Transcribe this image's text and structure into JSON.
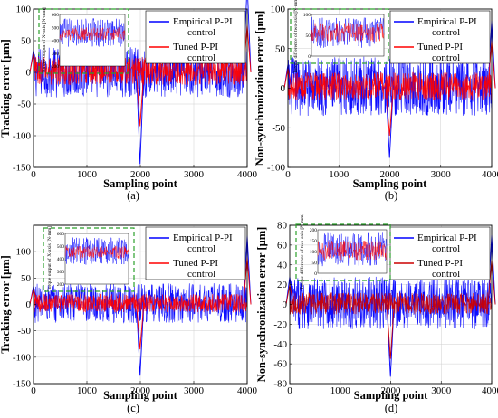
{
  "chart_data": [
    {
      "type": "line",
      "caption": "(a)",
      "xlabel": "Sampling point",
      "ylabel": "Tracking error [μm]",
      "xlim": [
        0,
        4000
      ],
      "ylim": [
        -150,
        100
      ],
      "xticks": [
        0,
        1000,
        2000,
        3000,
        4000
      ],
      "yticks": [
        -150,
        -100,
        -50,
        0,
        50,
        100
      ],
      "legend": {
        "placement": "top-right",
        "entries": [
          "Empirical P-PI control",
          "Tuned P-PI control"
        ]
      },
      "series": [
        {
          "name": "Empirical P-PI control",
          "color": "#0000ff",
          "band": [
            -40,
            40
          ],
          "spikes": [
            [
              0,
              35
            ],
            [
              1995,
              -145
            ],
            [
              4000,
              140
            ]
          ]
        },
        {
          "name": "Tuned P-PI control",
          "color": "#ff0000",
          "band": [
            -20,
            25
          ],
          "spikes": [
            [
              0,
              30
            ],
            [
              1995,
              -85
            ],
            [
              4000,
              75
            ]
          ]
        }
      ],
      "inset": {
        "ylabel": "Torque output of X-axis [N·mm]",
        "ylim": [
          200,
          600
        ],
        "yticks": [
          200,
          300,
          400,
          500,
          600
        ],
        "blue_band": [
          350,
          570
        ],
        "red_band": [
          400,
          500
        ]
      }
    },
    {
      "type": "line",
      "caption": "(b)",
      "xlabel": "Sampling point",
      "ylabel": "Non-synchronization error [μm]",
      "xlim": [
        0,
        4000
      ],
      "ylim": [
        -100,
        100
      ],
      "xticks": [
        0,
        1000,
        2000,
        3000,
        4000
      ],
      "yticks": [
        -100,
        -50,
        0,
        50,
        100
      ],
      "legend": {
        "placement": "top-right",
        "entries": [
          "Empirical P-PI control",
          "Tuned P-PI control"
        ]
      },
      "series": [
        {
          "name": "Empirical P-PI control",
          "color": "#0000ff",
          "band": [
            -35,
            40
          ],
          "spikes": [
            [
              0,
              30
            ],
            [
              1995,
              -88
            ],
            [
              4000,
              85
            ]
          ]
        },
        {
          "name": "Tuned P-PI control",
          "color": "#ff0000",
          "band": [
            -15,
            20
          ],
          "spikes": [
            [
              0,
              25
            ],
            [
              1995,
              -60
            ],
            [
              4000,
              60
            ]
          ]
        }
      ],
      "inset": {
        "ylabel": "Torque difference of two-axis [N·mm]",
        "ylim": [
          0,
          100
        ],
        "yticks": [
          0,
          50,
          100
        ],
        "blue_band": [
          20,
          95
        ],
        "red_band": [
          35,
          80
        ]
      }
    },
    {
      "type": "line",
      "caption": "(c)",
      "xlabel": "Sampling point",
      "ylabel": "Tracking error [μm]",
      "xlim": [
        0,
        4000
      ],
      "ylim": [
        -150,
        150
      ],
      "xticks": [
        0,
        1000,
        2000,
        3000,
        4000
      ],
      "yticks": [
        -150,
        -100,
        -50,
        0,
        50,
        100
      ],
      "legend": {
        "placement": "top-right",
        "entries": [
          "Empirical P-PI control",
          "Tuned P-PI control"
        ]
      },
      "series": [
        {
          "name": "Empirical P-PI control",
          "color": "#0000ff",
          "band": [
            -35,
            40
          ],
          "spikes": [
            [
              0,
              35
            ],
            [
              1995,
              -135
            ],
            [
              4000,
              130
            ]
          ]
        },
        {
          "name": "Tuned P-PI control",
          "color": "#ff0000",
          "band": [
            -15,
            20
          ],
          "spikes": [
            [
              0,
              30
            ],
            [
              1995,
              -85
            ],
            [
              4000,
              90
            ]
          ]
        }
      ],
      "inset": {
        "ylabel": "Torque output of X-axis [N·mm]",
        "ylim": [
          200,
          600
        ],
        "yticks": [
          200,
          300,
          400,
          500,
          600
        ],
        "blue_band": [
          350,
          570
        ],
        "red_band": [
          400,
          500
        ]
      }
    },
    {
      "type": "line",
      "caption": "(d)",
      "xlabel": "Sampling point",
      "ylabel": "Non-synchronization error [μm]",
      "xlim": [
        0,
        4000
      ],
      "ylim": [
        -80,
        80
      ],
      "xticks": [
        0,
        1000,
        2000,
        3000,
        4000
      ],
      "yticks": [
        -80,
        -60,
        -40,
        -20,
        0,
        20,
        40,
        60,
        80
      ],
      "legend": {
        "placement": "top-right",
        "entries": [
          "Empirical P-PI control",
          "Tuned P-PI control"
        ]
      },
      "series": [
        {
          "name": "Empirical P-PI control",
          "color": "#0000ff",
          "band": [
            -25,
            28
          ],
          "spikes": [
            [
              0,
              28
            ],
            [
              1995,
              -73
            ],
            [
              4000,
              70
            ]
          ]
        },
        {
          "name": "Tuned P-PI control",
          "color": "#cc0000",
          "band": [
            -10,
            12
          ],
          "spikes": [
            [
              0,
              20
            ],
            [
              1995,
              -55
            ],
            [
              4000,
              45
            ]
          ]
        }
      ],
      "inset": {
        "ylabel": "Torque difference of two-axis [N·mm]",
        "ylim": [
          0,
          200
        ],
        "yticks": [
          0,
          50,
          100,
          150,
          200
        ],
        "blue_band": [
          30,
          190
        ],
        "red_band": [
          60,
          150
        ]
      }
    }
  ]
}
